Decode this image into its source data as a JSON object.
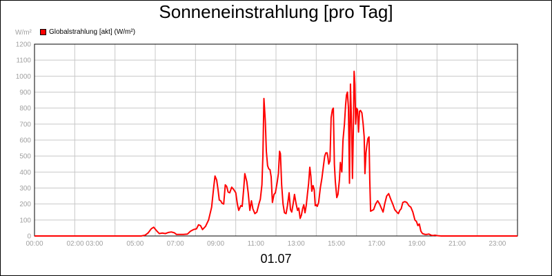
{
  "chart_data": {
    "type": "line",
    "title": "Sonneneinstrahlung [pro Tag]",
    "ylabel": "W/m²",
    "xlabel": "01.07",
    "ylim": [
      0,
      1200
    ],
    "y_ticks": [
      "0",
      "100",
      "200",
      "300",
      "400",
      "500",
      "600",
      "700",
      "800",
      "900",
      "1000",
      "1100",
      "1200"
    ],
    "x_ticks": [
      {
        "x": 0,
        "label": "00:00"
      },
      {
        "x": 2.5,
        "label": "02:00 03:00"
      },
      {
        "x": 5,
        "label": "05:00"
      },
      {
        "x": 7,
        "label": "07:00"
      },
      {
        "x": 9,
        "label": "09:00"
      },
      {
        "x": 11,
        "label": "11:00"
      },
      {
        "x": 13,
        "label": "13:00"
      },
      {
        "x": 15,
        "label": "15:00"
      },
      {
        "x": 17,
        "label": "17:00"
      },
      {
        "x": 19,
        "label": "19:00"
      },
      {
        "x": 21,
        "label": "21:00"
      },
      {
        "x": 23,
        "label": "23:00"
      }
    ],
    "grid": true,
    "legend": "top-left",
    "color": "#ff0000",
    "series": [
      {
        "name": "Globalstrahlung [akt] (W/m²)",
        "points": [
          [
            0,
            0
          ],
          [
            5.3,
            0
          ],
          [
            5.5,
            5
          ],
          [
            5.65,
            20
          ],
          [
            5.8,
            45
          ],
          [
            5.92,
            55
          ],
          [
            6.05,
            35
          ],
          [
            6.2,
            15
          ],
          [
            6.35,
            18
          ],
          [
            6.5,
            15
          ],
          [
            6.65,
            22
          ],
          [
            6.8,
            25
          ],
          [
            6.95,
            20
          ],
          [
            7.05,
            10
          ],
          [
            7.4,
            10
          ],
          [
            7.6,
            12
          ],
          [
            7.75,
            30
          ],
          [
            7.9,
            40
          ],
          [
            8.05,
            45
          ],
          [
            8.15,
            70
          ],
          [
            8.25,
            65
          ],
          [
            8.35,
            40
          ],
          [
            8.5,
            60
          ],
          [
            8.65,
            100
          ],
          [
            8.8,
            180
          ],
          [
            8.9,
            300
          ],
          [
            8.97,
            375
          ],
          [
            9.05,
            350
          ],
          [
            9.12,
            290
          ],
          [
            9.18,
            225
          ],
          [
            9.25,
            220
          ],
          [
            9.32,
            205
          ],
          [
            9.4,
            200
          ],
          [
            9.48,
            320
          ],
          [
            9.55,
            310
          ],
          [
            9.62,
            275
          ],
          [
            9.7,
            270
          ],
          [
            9.8,
            305
          ],
          [
            9.9,
            290
          ],
          [
            10.0,
            270
          ],
          [
            10.08,
            200
          ],
          [
            10.15,
            160
          ],
          [
            10.25,
            190
          ],
          [
            10.32,
            185
          ],
          [
            10.4,
            300
          ],
          [
            10.45,
            390
          ],
          [
            10.55,
            340
          ],
          [
            10.62,
            270
          ],
          [
            10.7,
            160
          ],
          [
            10.78,
            220
          ],
          [
            10.85,
            170
          ],
          [
            10.95,
            140
          ],
          [
            11.05,
            150
          ],
          [
            11.15,
            200
          ],
          [
            11.22,
            230
          ],
          [
            11.3,
            320
          ],
          [
            11.35,
            500
          ],
          [
            11.4,
            860
          ],
          [
            11.47,
            720
          ],
          [
            11.52,
            530
          ],
          [
            11.58,
            440
          ],
          [
            11.64,
            420
          ],
          [
            11.7,
            415
          ],
          [
            11.76,
            370
          ],
          [
            11.82,
            210
          ],
          [
            11.9,
            260
          ],
          [
            11.97,
            270
          ],
          [
            12.05,
            330
          ],
          [
            12.12,
            390
          ],
          [
            12.18,
            530
          ],
          [
            12.22,
            515
          ],
          [
            12.28,
            320
          ],
          [
            12.35,
            200
          ],
          [
            12.42,
            145
          ],
          [
            12.5,
            140
          ],
          [
            12.57,
            190
          ],
          [
            12.65,
            270
          ],
          [
            12.72,
            165
          ],
          [
            12.78,
            150
          ],
          [
            12.85,
            200
          ],
          [
            12.92,
            260
          ],
          [
            13.0,
            200
          ],
          [
            13.07,
            160
          ],
          [
            13.13,
            175
          ],
          [
            13.2,
            110
          ],
          [
            13.26,
            130
          ],
          [
            13.32,
            170
          ],
          [
            13.38,
            195
          ],
          [
            13.44,
            145
          ],
          [
            13.5,
            190
          ],
          [
            13.56,
            260
          ],
          [
            13.62,
            330
          ],
          [
            13.68,
            430
          ],
          [
            13.73,
            375
          ],
          [
            13.78,
            280
          ],
          [
            13.84,
            315
          ],
          [
            13.9,
            290
          ],
          [
            13.95,
            190
          ],
          [
            14.0,
            195
          ],
          [
            14.05,
            185
          ],
          [
            14.12,
            210
          ],
          [
            14.2,
            300
          ],
          [
            14.28,
            360
          ],
          [
            14.36,
            440
          ],
          [
            14.42,
            500
          ],
          [
            14.48,
            520
          ],
          [
            14.54,
            520
          ],
          [
            14.58,
            490
          ],
          [
            14.62,
            450
          ],
          [
            14.68,
            470
          ],
          [
            14.74,
            740
          ],
          [
            14.8,
            790
          ],
          [
            14.85,
            800
          ],
          [
            14.9,
            450
          ],
          [
            14.95,
            340
          ],
          [
            15.02,
            240
          ],
          [
            15.08,
            260
          ],
          [
            15.15,
            350
          ],
          [
            15.2,
            460
          ],
          [
            15.27,
            400
          ],
          [
            15.33,
            600
          ],
          [
            15.4,
            700
          ],
          [
            15.46,
            820
          ],
          [
            15.5,
            880
          ],
          [
            15.55,
            900
          ],
          [
            15.6,
            800
          ],
          [
            15.65,
            330
          ],
          [
            15.7,
            950
          ],
          [
            15.76,
            660
          ],
          [
            15.8,
            360
          ],
          [
            15.84,
            640
          ],
          [
            15.88,
            1030
          ],
          [
            15.92,
            950
          ],
          [
            15.96,
            700
          ],
          [
            16.0,
            800
          ],
          [
            16.05,
            790
          ],
          [
            16.1,
            650
          ],
          [
            16.15,
            780
          ],
          [
            16.2,
            785
          ],
          [
            16.27,
            770
          ],
          [
            16.33,
            700
          ],
          [
            16.38,
            620
          ],
          [
            16.42,
            390
          ],
          [
            16.47,
            520
          ],
          [
            16.52,
            570
          ],
          [
            16.57,
            610
          ],
          [
            16.62,
            620
          ],
          [
            16.66,
            350
          ],
          [
            16.7,
            155
          ],
          [
            16.78,
            160
          ],
          [
            16.85,
            165
          ],
          [
            16.95,
            200
          ],
          [
            17.05,
            220
          ],
          [
            17.15,
            200
          ],
          [
            17.25,
            170
          ],
          [
            17.32,
            150
          ],
          [
            17.4,
            200
          ],
          [
            17.5,
            250
          ],
          [
            17.6,
            265
          ],
          [
            17.7,
            230
          ],
          [
            17.8,
            200
          ],
          [
            17.9,
            165
          ],
          [
            18.0,
            150
          ],
          [
            18.08,
            140
          ],
          [
            18.15,
            160
          ],
          [
            18.22,
            170
          ],
          [
            18.3,
            210
          ],
          [
            18.4,
            215
          ],
          [
            18.5,
            210
          ],
          [
            18.6,
            190
          ],
          [
            18.7,
            180
          ],
          [
            18.8,
            150
          ],
          [
            18.9,
            100
          ],
          [
            18.98,
            90
          ],
          [
            19.05,
            65
          ],
          [
            19.12,
            75
          ],
          [
            19.2,
            30
          ],
          [
            19.28,
            15
          ],
          [
            19.4,
            10
          ],
          [
            19.5,
            10
          ],
          [
            19.6,
            12
          ],
          [
            19.7,
            5
          ],
          [
            19.8,
            3
          ],
          [
            19.9,
            5
          ],
          [
            20.0,
            2
          ],
          [
            20.2,
            0
          ],
          [
            24,
            0
          ]
        ]
      }
    ]
  }
}
